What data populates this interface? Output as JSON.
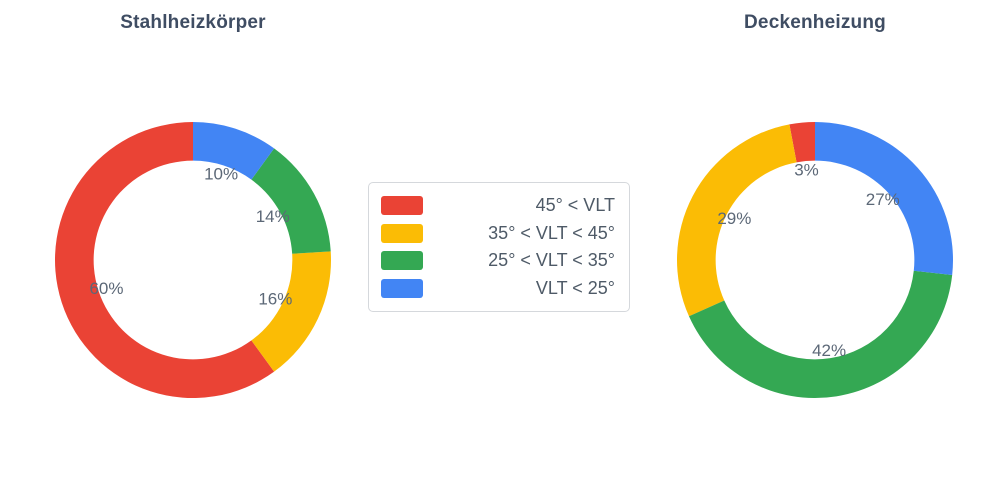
{
  "figure": {
    "background": "#ffffff"
  },
  "legend": {
    "items": [
      {
        "key": "red",
        "label": "45° < VLT",
        "color": "#ea4335"
      },
      {
        "key": "yellow",
        "label": "35° < VLT < 45°",
        "color": "#fbbc05"
      },
      {
        "key": "green",
        "label": "25° < VLT < 35°",
        "color": "#34a853"
      },
      {
        "key": "blue",
        "label": "VLT < 25°",
        "color": "#4285f4"
      }
    ]
  },
  "chart_data": [
    {
      "type": "pie",
      "title": "Stahlheizkörper",
      "hole": 0.72,
      "direction": "counterclockwise",
      "start_angle_deg": 0,
      "categories": [
        "45° < VLT",
        "35° < VLT < 45°",
        "25° < VLT < 35°",
        "VLT < 25°"
      ],
      "values": [
        60,
        16,
        14,
        10
      ],
      "value_labels": [
        "60%",
        "16%",
        "14%",
        "10%"
      ],
      "colors": [
        "#ea4335",
        "#fbbc05",
        "#34a853",
        "#4285f4"
      ],
      "slice_keys": [
        "red-45-plus",
        "yellow-35-to-45",
        "green-25-to-35",
        "blue-under-25"
      ]
    },
    {
      "type": "pie",
      "title": "Deckenheizung",
      "hole": 0.72,
      "direction": "counterclockwise",
      "start_angle_deg": 0,
      "categories": [
        "45° < VLT",
        "35° < VLT < 45°",
        "25° < VLT < 35°",
        "VLT < 25°"
      ],
      "values": [
        3,
        29,
        42,
        27
      ],
      "value_labels": [
        "3%",
        "29%",
        "42%",
        "27%"
      ],
      "colors": [
        "#ea4335",
        "#fbbc05",
        "#34a853",
        "#4285f4"
      ],
      "slice_keys": [
        "red-45-plus",
        "yellow-35-to-45",
        "green-25-to-35",
        "blue-under-25"
      ]
    }
  ]
}
